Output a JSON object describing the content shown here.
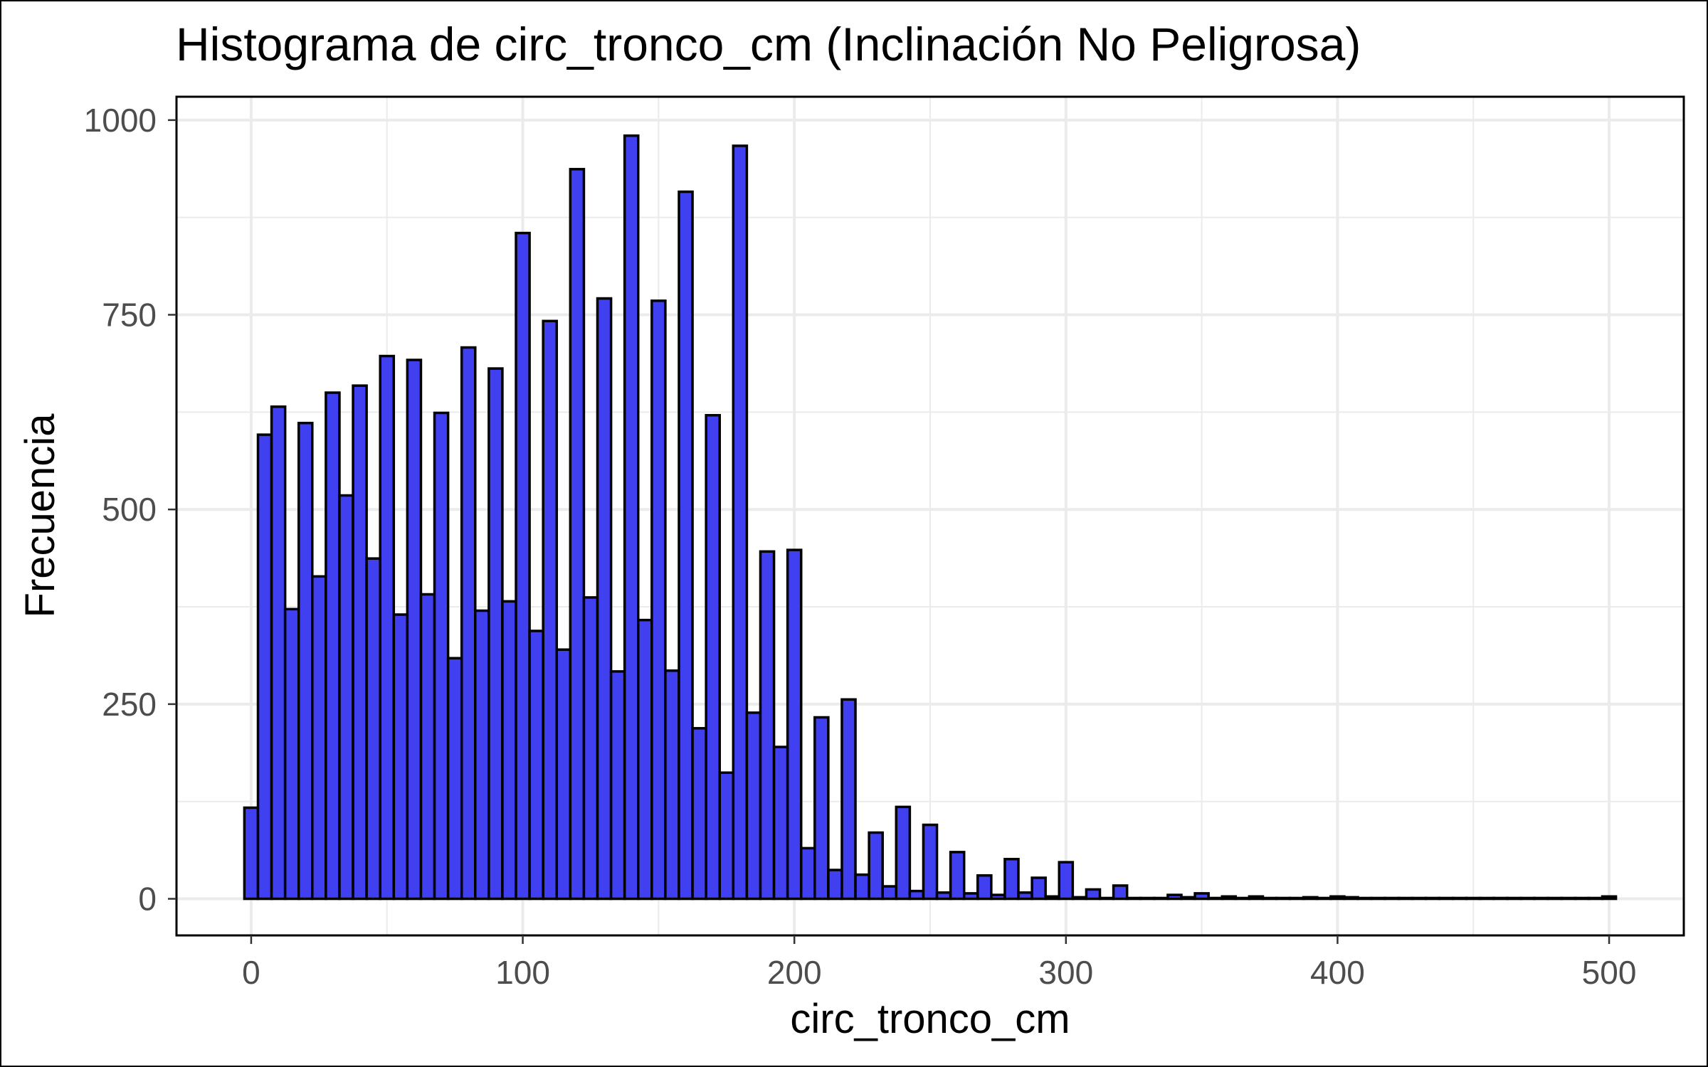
{
  "chart_data": {
    "type": "histogram",
    "title": "Histograma de circ_tronco_cm (Inclinación No Peligrosa)",
    "xlabel": "circ_tronco_cm",
    "ylabel": "Frecuencia",
    "xlim": [
      -27.5,
      527.5
    ],
    "ylim": [
      -47,
      1030
    ],
    "x_ticks": [
      0,
      100,
      200,
      300,
      400,
      500
    ],
    "y_ticks": [
      0,
      250,
      500,
      750,
      1000
    ],
    "x_tick_labels": [
      "0",
      "100",
      "200",
      "300",
      "400",
      "500"
    ],
    "y_tick_labels": [
      "0",
      "250",
      "500",
      "750",
      "1000"
    ],
    "grid": true,
    "fill_color": "#4040f0",
    "outline_color": "#000000",
    "bin_width": 5,
    "bin_centers": [
      0,
      5,
      10,
      15,
      20,
      25,
      30,
      35,
      40,
      45,
      50,
      55,
      60,
      65,
      70,
      75,
      80,
      85,
      90,
      95,
      100,
      105,
      110,
      115,
      120,
      125,
      130,
      135,
      140,
      145,
      150,
      155,
      160,
      165,
      170,
      175,
      180,
      185,
      190,
      195,
      200,
      205,
      210,
      215,
      220,
      225,
      230,
      235,
      240,
      245,
      250,
      255,
      260,
      265,
      270,
      275,
      280,
      285,
      290,
      295,
      300,
      305,
      310,
      315,
      320,
      325,
      330,
      335,
      340,
      345,
      350,
      355,
      360,
      365,
      370,
      375,
      380,
      385,
      390,
      395,
      400,
      405,
      410,
      415,
      420,
      425,
      430,
      435,
      440,
      445,
      450,
      455,
      460,
      465,
      470,
      475,
      480,
      485,
      490,
      495,
      500
    ],
    "values": [
      117,
      596,
      632,
      372,
      611,
      414,
      650,
      518,
      659,
      437,
      697,
      365,
      692,
      391,
      624,
      309,
      708,
      370,
      681,
      382,
      855,
      344,
      742,
      320,
      937,
      387,
      771,
      292,
      980,
      358,
      768,
      293,
      908,
      219,
      621,
      162,
      967,
      239,
      446,
      195,
      448,
      65,
      233,
      37,
      256,
      31,
      85,
      16,
      118,
      10,
      95,
      8,
      60,
      7,
      30,
      5,
      51,
      8,
      27,
      3,
      47,
      2,
      12,
      1,
      17,
      1,
      1,
      1,
      5,
      2,
      7,
      1,
      3,
      1,
      3,
      1,
      1,
      1,
      2,
      1,
      3,
      2,
      1,
      1,
      1,
      1,
      1,
      1,
      1,
      1,
      1,
      1,
      1,
      1,
      1,
      1,
      1,
      1,
      1,
      1,
      3
    ]
  }
}
